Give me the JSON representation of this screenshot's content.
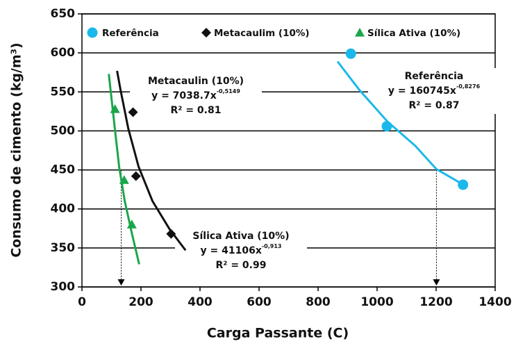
{
  "chart_data": {
    "type": "scatter",
    "x_label": "Carga Passante (C)",
    "y_label": "Consumo de cimento (kg/m³)",
    "xlim": [
      0,
      1400
    ],
    "ylim": [
      300,
      650
    ],
    "xticks": [
      0,
      200,
      400,
      600,
      800,
      1000,
      1200,
      1400
    ],
    "yticks": [
      300,
      350,
      400,
      450,
      500,
      550,
      600,
      650
    ],
    "grid": true,
    "legend": "top",
    "series": [
      {
        "name": "Referência",
        "color": "#1ab8ea",
        "marker": "circle",
        "x": [
          911,
          1033,
          1291
        ],
        "values": [
          599,
          506,
          431
        ]
      },
      {
        "name": "Metacaulim (10%)",
        "color": "#111111",
        "marker": "diamond",
        "x": [
          173,
          183,
          302
        ],
        "values": [
          524,
          442,
          368
        ]
      },
      {
        "name": "Sílica Ativa (10%)",
        "color": "#1aa64a",
        "marker": "triangle",
        "x": [
          112,
          143,
          169
        ],
        "values": [
          528,
          437,
          380
        ]
      }
    ],
    "trendlines": [
      {
        "color": "#1ab8ea",
        "x": [
          866,
          941,
          1035,
          1129,
          1201,
          1288
        ],
        "values": [
          589,
          552,
          512,
          481,
          451,
          432
        ]
      },
      {
        "color": "#111111",
        "x": [
          119,
          131,
          157,
          192,
          239,
          297,
          351
        ],
        "values": [
          577,
          552,
          503,
          454,
          410,
          374,
          347
        ]
      },
      {
        "color": "#1aa64a",
        "x": [
          91,
          110,
          126,
          145,
          169,
          194
        ],
        "values": [
          573,
          508,
          454,
          410,
          369,
          329
        ]
      }
    ],
    "reference_lines": {
      "y": 450,
      "x": [
        133,
        1201
      ]
    },
    "annotations": [
      {
        "title": "Metacaulin (10%)",
        "equation": "y = 7038.7x",
        "exponent": "-0,5149",
        "r2": "R² = 0.81"
      },
      {
        "title": "Referência",
        "equation": "y = 160745x",
        "exponent": "-0,8276",
        "r2": "R² = 0.87"
      },
      {
        "title": "Sílica Ativa (10%)",
        "equation": "y = 41106x",
        "exponent": "-0,913",
        "r2": "R² = 0.99"
      }
    ]
  }
}
